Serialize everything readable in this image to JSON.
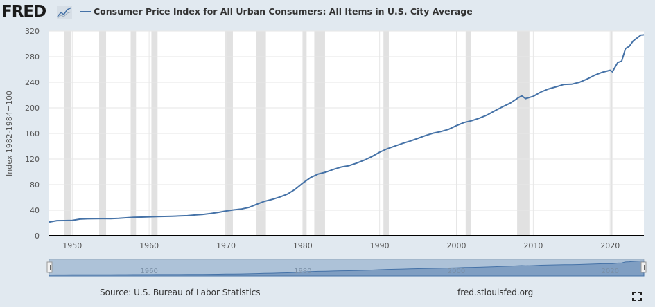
{
  "header": {
    "logo_text": "FRED",
    "logo_icon": "line-chart-icon",
    "series_title": "Consumer Price Index for All Urban Consumers: All Items in U.S. City Average"
  },
  "footer": {
    "source": "Source: U.S. Bureau of Labor Statistics",
    "site": "fred.stlouisfed.org",
    "fullscreen_icon": "fullscreen-icon"
  },
  "colors": {
    "line": "#4572a7",
    "recession": "#e1e1e1",
    "background": "#e1e9f0",
    "plot": "#ffffff"
  },
  "chart_data": {
    "type": "line",
    "title": "Consumer Price Index for All Urban Consumers: All Items in U.S. City Average",
    "xlabel": "",
    "ylabel": "Index 1982-1984=100",
    "xlim": [
      1947.0,
      2024.4
    ],
    "ylim": [
      0,
      320
    ],
    "yticks": [
      0,
      40,
      80,
      120,
      160,
      200,
      240,
      280,
      320
    ],
    "xticks": [
      1950,
      1960,
      1970,
      1980,
      1990,
      2000,
      2010,
      2020
    ],
    "grid": true,
    "legend": "top-left",
    "navigator_ticks": [
      1960,
      1980,
      2000,
      2020
    ],
    "recessions": [
      [
        1948.9,
        1949.8
      ],
      [
        1953.5,
        1954.4
      ],
      [
        1957.6,
        1958.3
      ],
      [
        1960.3,
        1961.1
      ],
      [
        1969.9,
        1970.9
      ],
      [
        1973.9,
        1975.2
      ],
      [
        1980.0,
        1980.5
      ],
      [
        1981.5,
        1982.9
      ],
      [
        1990.5,
        1991.2
      ],
      [
        2001.2,
        2001.9
      ],
      [
        2007.9,
        2009.5
      ],
      [
        2020.1,
        2020.3
      ]
    ],
    "series": [
      {
        "name": "Consumer Price Index for All Urban Consumers: All Items in U.S. City Average",
        "x": [
          1947,
          1948,
          1949,
          1950,
          1951,
          1952,
          1953,
          1954,
          1955,
          1956,
          1957,
          1958,
          1959,
          1960,
          1961,
          1962,
          1963,
          1964,
          1965,
          1966,
          1967,
          1968,
          1969,
          1970,
          1971,
          1972,
          1973,
          1974,
          1975,
          1976,
          1977,
          1978,
          1979,
          1980,
          1981,
          1982,
          1983,
          1984,
          1985,
          1986,
          1987,
          1988,
          1989,
          1990,
          1991,
          1992,
          1993,
          1994,
          1995,
          1996,
          1997,
          1998,
          1999,
          2000,
          2001,
          2002,
          2003,
          2004,
          2005,
          2006,
          2007,
          2008,
          2008.5,
          2009,
          2010,
          2011,
          2012,
          2013,
          2014,
          2015,
          2016,
          2017,
          2018,
          2019,
          2020,
          2020.3,
          2021,
          2021.5,
          2022,
          2022.5,
          2023,
          2024,
          2024.4
        ],
        "values": [
          21.5,
          23.7,
          23.8,
          24.1,
          26.0,
          26.6,
          26.8,
          26.9,
          26.8,
          27.2,
          28.1,
          28.9,
          29.2,
          29.6,
          29.9,
          30.3,
          30.6,
          31.0,
          31.5,
          32.5,
          33.4,
          34.8,
          36.7,
          38.8,
          40.5,
          41.8,
          44.4,
          49.3,
          53.8,
          56.9,
          60.6,
          65.2,
          72.6,
          82.4,
          90.9,
          96.5,
          99.6,
          103.9,
          107.6,
          109.6,
          113.6,
          118.3,
          124.0,
          130.7,
          136.2,
          140.3,
          144.5,
          148.2,
          152.4,
          156.9,
          160.5,
          163.0,
          166.6,
          172.2,
          177.1,
          179.9,
          184.0,
          188.9,
          195.3,
          201.6,
          207.3,
          215.3,
          218.8,
          214.5,
          218.1,
          224.9,
          229.6,
          233.0,
          236.7,
          237.0,
          240.0,
          245.1,
          251.1,
          255.7,
          258.8,
          256.4,
          271.0,
          273.0,
          292.7,
          296.2,
          304.7,
          313.7,
          314.2
        ]
      }
    ]
  }
}
